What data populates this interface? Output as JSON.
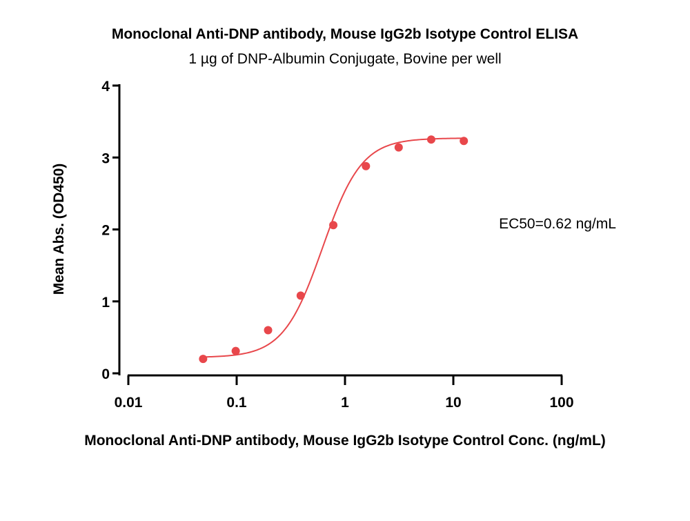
{
  "chart_data": {
    "type": "scatter",
    "title": "Monoclonal Anti-DNP antibody, Mouse IgG2b Isotype Control ELISA",
    "subtitle": "1 µg of DNP-Albumin Conjugate, Bovine per well",
    "xlabel": "Monoclonal Anti-DNP antibody, Mouse IgG2b Isotype Control Conc. (ng/mL)",
    "ylabel": "Mean Abs. (OD450)",
    "xscale": "log",
    "xlim": [
      0.01,
      100
    ],
    "ylim": [
      0,
      4
    ],
    "x_ticks": [
      0.01,
      0.1,
      1,
      10,
      100
    ],
    "x_tick_labels": [
      "0.01",
      "0.1",
      "1",
      "10",
      "100"
    ],
    "y_ticks": [
      0,
      1,
      2,
      3,
      4
    ],
    "y_tick_labels": [
      "0",
      "1",
      "2",
      "3",
      "4"
    ],
    "grid": false,
    "series": [
      {
        "name": "Mean Abs.",
        "x": [
          0.049,
          0.098,
          0.195,
          0.39,
          0.78,
          1.56,
          3.13,
          6.25,
          12.5
        ],
        "y": [
          0.2,
          0.31,
          0.6,
          1.08,
          2.06,
          2.88,
          3.14,
          3.25,
          3.23
        ],
        "fit": {
          "model": "4PL",
          "bottom": 0.22,
          "top": 3.27,
          "ec50": 0.62,
          "hill": 2.4
        }
      }
    ],
    "annotations": [
      {
        "text": "EC50=0.62 ng/mL",
        "position": "right-middle"
      }
    ],
    "colors": {
      "series": "#e8474b",
      "axis": "#000000"
    }
  }
}
